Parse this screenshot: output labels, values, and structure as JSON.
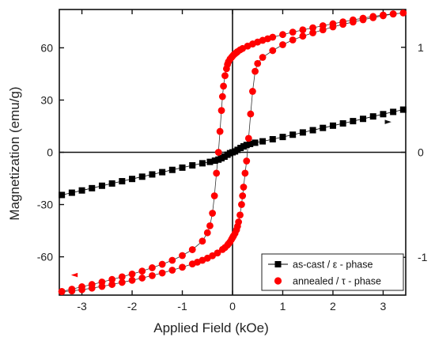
{
  "chart_data": {
    "type": "scatter",
    "xlabel": "Applied Field (kOe)",
    "ylabel": "Magnetization (emu/g)",
    "xlim": [
      -3.45,
      3.45
    ],
    "ylim": [
      -82,
      82
    ],
    "y2lim": [
      -1.36,
      1.36
    ],
    "x_ticks": [
      -3,
      -2,
      -1,
      0,
      1,
      2,
      3
    ],
    "y_ticks": [
      -60,
      -30,
      0,
      30,
      60
    ],
    "y2_ticks": [
      -1,
      0,
      1
    ],
    "grid": false,
    "legend_position": "bottom-right",
    "series": [
      {
        "name": "as-cast  / ε - phase",
        "marker": "square",
        "color": "#000000",
        "axis": "left",
        "x": [
          -3.4,
          -3.2,
          -3.0,
          -2.8,
          -2.6,
          -2.4,
          -2.2,
          -2.0,
          -1.8,
          -1.6,
          -1.4,
          -1.2,
          -1.0,
          -0.8,
          -0.6,
          -0.45,
          -0.35,
          -0.28,
          -0.22,
          -0.16,
          -0.1,
          -0.05,
          0.0,
          0.05,
          0.1,
          0.16,
          0.22,
          0.28,
          0.35,
          0.45,
          0.6,
          0.8,
          1.0,
          1.2,
          1.4,
          1.6,
          1.8,
          2.0,
          2.2,
          2.4,
          2.6,
          2.8,
          3.0,
          3.2,
          3.4
        ],
        "y": [
          -24.5,
          -23.2,
          -21.9,
          -20.6,
          -19.2,
          -17.9,
          -16.6,
          -15.3,
          -14.0,
          -12.7,
          -11.4,
          -10.1,
          -8.8,
          -7.5,
          -6.3,
          -5.5,
          -4.8,
          -4.2,
          -3.4,
          -2.5,
          -1.4,
          -0.5,
          0.0,
          0.5,
          1.4,
          2.5,
          3.4,
          4.2,
          4.8,
          5.5,
          6.3,
          7.5,
          8.8,
          10.1,
          11.4,
          12.7,
          14.0,
          15.3,
          16.6,
          17.9,
          19.2,
          20.6,
          21.9,
          23.2,
          24.5
        ]
      },
      {
        "name": "annealed / τ - phase",
        "marker": "circle",
        "color": "#ff0000",
        "axis": "left",
        "x": [
          -3.4,
          -3.2,
          -3.0,
          -2.8,
          -2.6,
          -2.4,
          -2.2,
          -2.0,
          -1.8,
          -1.6,
          -1.4,
          -1.2,
          -1.0,
          -0.8,
          -0.6,
          -0.5,
          -0.45,
          -0.4,
          -0.36,
          -0.32,
          -0.28,
          -0.25,
          -0.22,
          -0.2,
          -0.18,
          -0.15,
          -0.12,
          -0.1,
          -0.08,
          -0.05,
          -0.02,
          0.0,
          0.02,
          0.05,
          0.08,
          0.1,
          0.15,
          0.2,
          0.3,
          0.4,
          0.5,
          0.6,
          0.7,
          0.8,
          1.0,
          1.2,
          1.4,
          1.6,
          1.8,
          2.0,
          2.2,
          2.4,
          2.6,
          2.8,
          3.0,
          3.2,
          3.4,
          3.2,
          3.0,
          2.8,
          2.6,
          2.4,
          2.2,
          2.0,
          1.8,
          1.6,
          1.4,
          1.2,
          1.0,
          0.8,
          0.6,
          0.5,
          0.45,
          0.4,
          0.36,
          0.32,
          0.28,
          0.25,
          0.22,
          0.2,
          0.18,
          0.15,
          0.12,
          0.1,
          0.08,
          0.05,
          0.02,
          0.0,
          -0.02,
          -0.05,
          -0.08,
          -0.1,
          -0.15,
          -0.2,
          -0.3,
          -0.4,
          -0.5,
          -0.6,
          -0.7,
          -0.8,
          -1.0,
          -1.2,
          -1.4,
          -1.6,
          -1.8,
          -2.0,
          -2.2,
          -2.4,
          -2.6,
          -2.8,
          -3.0,
          -3.2,
          -3.4
        ],
        "y": [
          -79.9,
          -78.6,
          -77.2,
          -75.9,
          -74.5,
          -73.0,
          -71.5,
          -69.9,
          -68.2,
          -66.3,
          -64.3,
          -62.0,
          -59.3,
          -55.9,
          -51.0,
          -46.2,
          -42.2,
          -35.0,
          -25.0,
          -12.0,
          0.0,
          12.0,
          24.0,
          32.0,
          38.0,
          44.0,
          48.0,
          50.5,
          52.0,
          53.5,
          54.5,
          55.2,
          55.9,
          56.6,
          57.3,
          57.8,
          58.8,
          59.6,
          61.0,
          62.2,
          63.3,
          64.3,
          65.2,
          66.1,
          67.6,
          69.0,
          70.3,
          71.5,
          72.7,
          73.8,
          74.9,
          76.0,
          77.0,
          78.0,
          78.8,
          79.5,
          80.0,
          79.4,
          78.4,
          77.3,
          76.1,
          74.8,
          73.5,
          72.0,
          70.3,
          68.6,
          66.7,
          64.5,
          61.8,
          58.4,
          54.5,
          51.0,
          46.5,
          35.0,
          22.0,
          8.0,
          -5.0,
          -12.0,
          -20.0,
          -25.0,
          -30.0,
          -36.0,
          -40.0,
          -42.5,
          -44.5,
          -46.5,
          -48.0,
          -49.0,
          -50.0,
          -51.5,
          -52.5,
          -53.3,
          -54.7,
          -55.8,
          -57.8,
          -59.4,
          -60.8,
          -62.0,
          -63.1,
          -64.1,
          -66.0,
          -67.7,
          -69.3,
          -70.8,
          -72.2,
          -73.5,
          -74.7,
          -75.9,
          -77.0,
          -78.0,
          -78.9,
          -79.6,
          -80.0
        ]
      }
    ],
    "annotations": [
      {
        "text": "◄",
        "meaning": "arrow pointing to left axis",
        "x": -3.15,
        "y": -70
      },
      {
        "text": "►",
        "meaning": "arrow pointing to right axis",
        "x": 3.1,
        "y": 18
      }
    ]
  }
}
